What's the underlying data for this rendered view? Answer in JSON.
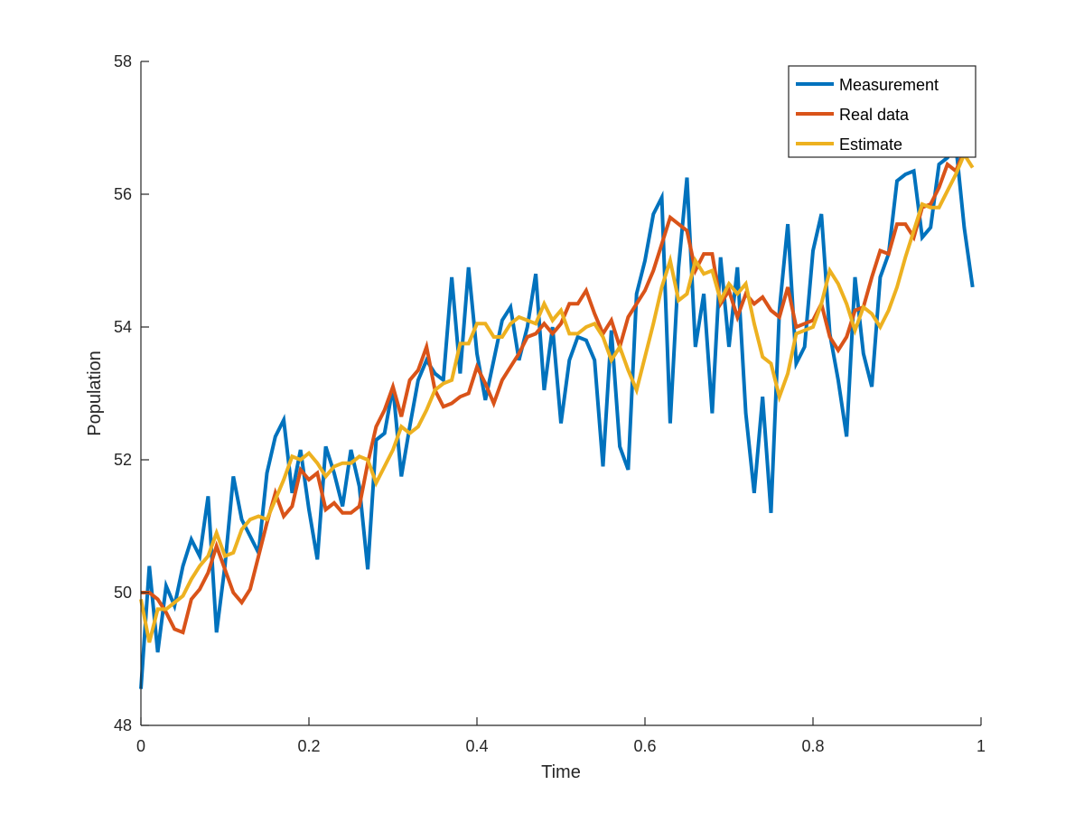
{
  "chart_data": {
    "type": "line",
    "title": "",
    "xlabel": "Time",
    "ylabel": "Population",
    "xlim": [
      0,
      1
    ],
    "ylim": [
      48,
      58
    ],
    "xticks": [
      0,
      0.2,
      0.4,
      0.6,
      0.8,
      1
    ],
    "xtick_labels": [
      "0",
      "0.2",
      "0.4",
      "0.6",
      "0.8",
      "1"
    ],
    "yticks": [
      48,
      50,
      52,
      54,
      56,
      58
    ],
    "ytick_labels": [
      "48",
      "50",
      "52",
      "54",
      "56",
      "58"
    ],
    "grid": false,
    "legend_position": "top-right",
    "x": [
      0,
      0.01,
      0.02,
      0.03,
      0.04,
      0.05,
      0.06,
      0.07,
      0.08,
      0.09,
      0.1,
      0.11,
      0.12,
      0.13,
      0.14,
      0.15,
      0.16,
      0.17,
      0.18,
      0.19,
      0.2,
      0.21,
      0.22,
      0.23,
      0.24,
      0.25,
      0.26,
      0.27,
      0.28,
      0.29,
      0.3,
      0.31,
      0.32,
      0.33,
      0.34,
      0.35,
      0.36,
      0.37,
      0.38,
      0.39,
      0.4,
      0.41,
      0.42,
      0.43,
      0.44,
      0.45,
      0.46,
      0.47,
      0.48,
      0.49,
      0.5,
      0.51,
      0.52,
      0.53,
      0.54,
      0.55,
      0.56,
      0.57,
      0.58,
      0.59,
      0.6,
      0.61,
      0.62,
      0.63,
      0.64,
      0.65,
      0.66,
      0.67,
      0.68,
      0.69,
      0.7,
      0.71,
      0.72,
      0.73,
      0.74,
      0.75,
      0.76,
      0.77,
      0.78,
      0.79,
      0.8,
      0.81,
      0.82,
      0.83,
      0.84,
      0.85,
      0.86,
      0.87,
      0.88,
      0.89,
      0.9,
      0.91,
      0.92,
      0.93,
      0.94,
      0.95,
      0.96,
      0.97,
      0.98,
      0.99
    ],
    "series": [
      {
        "name": "Measurement",
        "color": "#0072bd",
        "values": [
          48.55,
          50.4,
          49.1,
          50.1,
          49.8,
          50.4,
          50.8,
          50.55,
          51.45,
          49.4,
          50.4,
          51.75,
          51.1,
          50.85,
          50.6,
          51.8,
          52.35,
          52.6,
          51.5,
          52.15,
          51.25,
          50.5,
          52.2,
          51.8,
          51.3,
          52.15,
          51.6,
          50.35,
          52.3,
          52.4,
          53.1,
          51.75,
          52.5,
          53.2,
          53.5,
          53.3,
          53.2,
          54.75,
          53.3,
          54.9,
          53.6,
          52.9,
          53.5,
          54.1,
          54.3,
          53.5,
          54.0,
          54.8,
          53.05,
          54.0,
          52.55,
          53.5,
          53.85,
          53.8,
          53.5,
          51.9,
          53.95,
          52.2,
          51.85,
          54.5,
          55.0,
          55.7,
          55.95,
          52.55,
          54.9,
          56.25,
          53.7,
          54.5,
          52.7,
          55.05,
          53.7,
          54.9,
          52.7,
          51.5,
          52.95,
          51.2,
          54.25,
          55.55,
          53.45,
          53.7,
          55.15,
          55.7,
          53.9,
          53.2,
          52.35,
          54.75,
          53.6,
          53.1,
          54.75,
          55.1,
          56.2,
          56.3,
          56.35,
          55.35,
          55.5,
          56.45,
          56.55,
          56.75,
          55.5,
          54.6
        ]
      },
      {
        "name": "Real data",
        "color": "#d95319",
        "values": [
          50.0,
          50.0,
          49.9,
          49.7,
          49.45,
          49.4,
          49.9,
          50.05,
          50.3,
          50.7,
          50.35,
          50.0,
          49.85,
          50.05,
          50.55,
          51.05,
          51.5,
          51.15,
          51.3,
          51.85,
          51.7,
          51.8,
          51.25,
          51.35,
          51.2,
          51.2,
          51.3,
          51.95,
          52.5,
          52.75,
          53.1,
          52.65,
          53.2,
          53.35,
          53.7,
          53.05,
          52.8,
          52.85,
          52.95,
          53.0,
          53.4,
          53.15,
          52.85,
          53.2,
          53.4,
          53.6,
          53.85,
          53.9,
          54.05,
          53.9,
          54.05,
          54.35,
          54.35,
          54.55,
          54.2,
          53.9,
          54.1,
          53.7,
          54.15,
          54.35,
          54.55,
          54.85,
          55.25,
          55.65,
          55.55,
          55.45,
          54.85,
          55.1,
          55.1,
          54.35,
          54.55,
          54.15,
          54.5,
          54.35,
          54.45,
          54.25,
          54.15,
          54.6,
          54.0,
          54.05,
          54.1,
          54.35,
          53.85,
          53.65,
          53.85,
          54.25,
          54.3,
          54.75,
          55.15,
          55.1,
          55.55,
          55.55,
          55.35,
          55.8,
          55.85,
          56.1,
          56.45,
          56.35,
          56.65,
          56.6
        ]
      },
      {
        "name": "Estimate",
        "color": "#edb120",
        "values": [
          49.9,
          49.25,
          49.75,
          49.75,
          49.85,
          49.95,
          50.2,
          50.4,
          50.55,
          50.9,
          50.55,
          50.6,
          50.95,
          51.1,
          51.15,
          51.1,
          51.4,
          51.7,
          52.05,
          52.0,
          52.1,
          51.95,
          51.75,
          51.9,
          51.95,
          51.95,
          52.05,
          52.0,
          51.65,
          51.9,
          52.15,
          52.5,
          52.4,
          52.5,
          52.75,
          53.05,
          53.15,
          53.2,
          53.75,
          53.75,
          54.05,
          54.05,
          53.85,
          53.85,
          54.05,
          54.15,
          54.1,
          54.05,
          54.35,
          54.1,
          54.25,
          53.9,
          53.9,
          54.0,
          54.05,
          53.85,
          53.5,
          53.7,
          53.35,
          53.05,
          53.55,
          54.05,
          54.6,
          55.0,
          54.4,
          54.5,
          55.0,
          54.8,
          54.85,
          54.4,
          54.65,
          54.5,
          54.65,
          54.05,
          53.55,
          53.45,
          52.95,
          53.3,
          53.9,
          53.95,
          54.0,
          54.35,
          54.85,
          54.65,
          54.35,
          53.95,
          54.3,
          54.2,
          54.0,
          54.25,
          54.6,
          55.05,
          55.45,
          55.85,
          55.8,
          55.8,
          56.05,
          56.3,
          56.6,
          56.4
        ]
      }
    ]
  }
}
